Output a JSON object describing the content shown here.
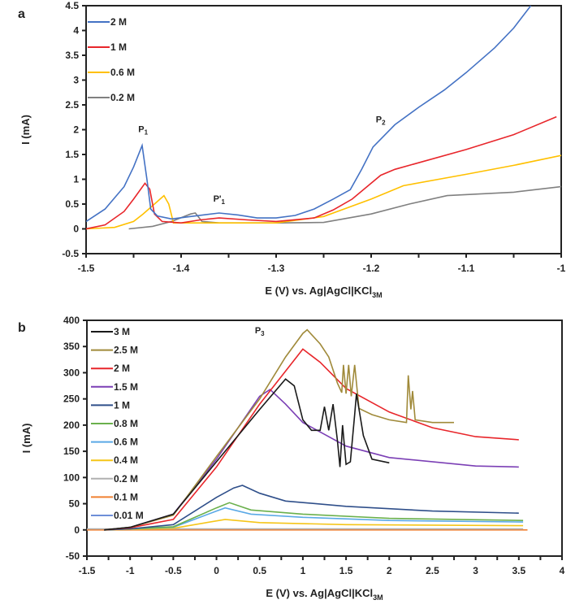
{
  "chart_data": [
    {
      "panel": "a",
      "type": "line",
      "xlabel": "E (V) vs. Ag|AgCl|KCl",
      "xlabel_sub": "3M",
      "ylabel": "I (mA)",
      "xlim": [
        -1.5,
        -1
      ],
      "ylim": [
        -0.5,
        4.5
      ],
      "xticks": [
        "-1.5",
        "-1.4",
        "-1.3",
        "-1.2",
        "-1.1",
        "-1"
      ],
      "xtick_values": [
        -1.5,
        -1.4,
        -1.3,
        -1.2,
        -1.1,
        -1
      ],
      "yticks": [
        "-0.5",
        "0",
        "0.5",
        "1",
        "1.5",
        "2",
        "2.5",
        "3",
        "3.5",
        "4",
        "4.5"
      ],
      "ytick_values": [
        -0.5,
        0,
        0.5,
        1,
        1.5,
        2,
        2.5,
        3,
        3.5,
        4,
        4.5
      ],
      "legend_placement": "top-left",
      "annotations": [
        {
          "text": "P",
          "sub": "1",
          "x": -1.44,
          "y": 1.95
        },
        {
          "text": "P'",
          "sub": "1",
          "x": -1.36,
          "y": 0.55
        },
        {
          "text": "P",
          "sub": "2",
          "x": -1.19,
          "y": 2.15
        }
      ],
      "series": [
        {
          "name": "2 M",
          "color": "#4472c4",
          "points": [
            [
              -1.5,
              0.15
            ],
            [
              -1.48,
              0.4
            ],
            [
              -1.46,
              0.85
            ],
            [
              -1.45,
              1.25
            ],
            [
              -1.441,
              1.68
            ],
            [
              -1.436,
              1.0
            ],
            [
              -1.432,
              0.4
            ],
            [
              -1.425,
              0.26
            ],
            [
              -1.41,
              0.2
            ],
            [
              -1.39,
              0.25
            ],
            [
              -1.36,
              0.32
            ],
            [
              -1.34,
              0.28
            ],
            [
              -1.32,
              0.22
            ],
            [
              -1.3,
              0.22
            ],
            [
              -1.28,
              0.27
            ],
            [
              -1.26,
              0.4
            ],
            [
              -1.24,
              0.6
            ],
            [
              -1.222,
              0.79
            ],
            [
              -1.21,
              1.2
            ],
            [
              -1.198,
              1.65
            ],
            [
              -1.175,
              2.1
            ],
            [
              -1.15,
              2.45
            ],
            [
              -1.123,
              2.8
            ],
            [
              -1.1,
              3.15
            ],
            [
              -1.07,
              3.65
            ],
            [
              -1.05,
              4.05
            ],
            [
              -1.032,
              4.5
            ]
          ]
        },
        {
          "name": "1 M",
          "color": "#e8262b",
          "points": [
            [
              -1.5,
              0
            ],
            [
              -1.48,
              0.08
            ],
            [
              -1.46,
              0.35
            ],
            [
              -1.45,
              0.6
            ],
            [
              -1.438,
              0.92
            ],
            [
              -1.433,
              0.8
            ],
            [
              -1.428,
              0.3
            ],
            [
              -1.42,
              0.15
            ],
            [
              -1.4,
              0.12
            ],
            [
              -1.38,
              0.18
            ],
            [
              -1.36,
              0.22
            ],
            [
              -1.33,
              0.18
            ],
            [
              -1.3,
              0.15
            ],
            [
              -1.26,
              0.22
            ],
            [
              -1.24,
              0.38
            ],
            [
              -1.22,
              0.6
            ],
            [
              -1.19,
              1.08
            ],
            [
              -1.175,
              1.2
            ],
            [
              -1.1,
              1.6
            ],
            [
              -1.05,
              1.9
            ],
            [
              -1.005,
              2.26
            ]
          ]
        },
        {
          "name": "0.6 M",
          "color": "#ffc000",
          "points": [
            [
              -1.5,
              0
            ],
            [
              -1.47,
              0.03
            ],
            [
              -1.45,
              0.15
            ],
            [
              -1.44,
              0.3
            ],
            [
              -1.425,
              0.55
            ],
            [
              -1.418,
              0.67
            ],
            [
              -1.413,
              0.5
            ],
            [
              -1.408,
              0.12
            ],
            [
              -1.38,
              0.12
            ],
            [
              -1.3,
              0.12
            ],
            [
              -1.25,
              0.25
            ],
            [
              -1.2,
              0.6
            ],
            [
              -1.166,
              0.87
            ],
            [
              -1.1,
              1.1
            ],
            [
              -1.05,
              1.28
            ],
            [
              -1.0,
              1.48
            ]
          ]
        },
        {
          "name": "0.2 M",
          "color": "#808080",
          "points": [
            [
              -1.455,
              0
            ],
            [
              -1.43,
              0.05
            ],
            [
              -1.41,
              0.15
            ],
            [
              -1.39,
              0.3
            ],
            [
              -1.385,
              0.32
            ],
            [
              -1.378,
              0.15
            ],
            [
              -1.36,
              0.12
            ],
            [
              -1.3,
              0.12
            ],
            [
              -1.25,
              0.13
            ],
            [
              -1.2,
              0.3
            ],
            [
              -1.16,
              0.5
            ],
            [
              -1.12,
              0.67
            ],
            [
              -1.05,
              0.74
            ],
            [
              -1.0,
              0.85
            ]
          ]
        }
      ]
    },
    {
      "panel": "b",
      "type": "line",
      "xlabel": "E (V) vs. Ag|AgCl|KCl",
      "xlabel_sub": "3M",
      "ylabel": "I (mA)",
      "xlim": [
        -1.5,
        4
      ],
      "ylim": [
        -50,
        400
      ],
      "xticks": [
        "-1.5",
        "-1",
        "-0.5",
        "0",
        "0.5",
        "1",
        "1.5",
        "2",
        "2.5",
        "3",
        "3.5",
        "4"
      ],
      "xtick_values": [
        -1.5,
        -1,
        -0.5,
        0,
        0.5,
        1,
        1.5,
        2,
        2.5,
        3,
        3.5,
        4
      ],
      "yticks": [
        "-50",
        "0",
        "50",
        "100",
        "150",
        "200",
        "250",
        "300",
        "350",
        "400"
      ],
      "ytick_values": [
        -50,
        0,
        50,
        100,
        150,
        200,
        250,
        300,
        350,
        400
      ],
      "legend_placement": "top-left",
      "annotations": [
        {
          "text": "P",
          "sub": "3",
          "x": 0.5,
          "y": 375
        }
      ],
      "series": [
        {
          "name": "3 M",
          "color": "#1a1a1a",
          "points": [
            [
              -1.3,
              0
            ],
            [
              -1,
              5
            ],
            [
              -0.5,
              30
            ],
            [
              0,
              130
            ],
            [
              0.5,
              230
            ],
            [
              0.8,
              288
            ],
            [
              0.9,
              275
            ],
            [
              1.0,
              210
            ],
            [
              1.1,
              190
            ],
            [
              1.2,
              190
            ],
            [
              1.25,
              235
            ],
            [
              1.3,
              190
            ],
            [
              1.35,
              240
            ],
            [
              1.4,
              170
            ],
            [
              1.43,
              120
            ],
            [
              1.46,
              200
            ],
            [
              1.5,
              125
            ],
            [
              1.55,
              130
            ],
            [
              1.6,
              220
            ],
            [
              1.62,
              260
            ],
            [
              1.7,
              180
            ],
            [
              1.8,
              135
            ],
            [
              2.0,
              128
            ]
          ]
        },
        {
          "name": "2.5 M",
          "color": "#a08a3a",
          "points": [
            [
              -1.3,
              0
            ],
            [
              -1,
              5
            ],
            [
              -0.5,
              28
            ],
            [
              0,
              140
            ],
            [
              0.5,
              250
            ],
            [
              0.8,
              330
            ],
            [
              1.0,
              375
            ],
            [
              1.05,
              382
            ],
            [
              1.2,
              355
            ],
            [
              1.3,
              330
            ],
            [
              1.4,
              280
            ],
            [
              1.45,
              262
            ],
            [
              1.47,
              315
            ],
            [
              1.5,
              260
            ],
            [
              1.53,
              315
            ],
            [
              1.56,
              255
            ],
            [
              1.6,
              315
            ],
            [
              1.65,
              232
            ],
            [
              1.8,
              220
            ],
            [
              2.0,
              210
            ],
            [
              2.2,
              205
            ],
            [
              2.22,
              295
            ],
            [
              2.25,
              230
            ],
            [
              2.27,
              265
            ],
            [
              2.3,
              210
            ],
            [
              2.5,
              205
            ],
            [
              2.75,
              205
            ]
          ]
        },
        {
          "name": "2 M",
          "color": "#e8262b",
          "points": [
            [
              -1.3,
              0
            ],
            [
              -1,
              4
            ],
            [
              -0.5,
              20
            ],
            [
              0,
              120
            ],
            [
              0.5,
              240
            ],
            [
              1.0,
              345
            ],
            [
              1.2,
              320
            ],
            [
              1.5,
              270
            ],
            [
              2.0,
              225
            ],
            [
              2.5,
              195
            ],
            [
              3.0,
              178
            ],
            [
              3.5,
              172
            ]
          ]
        },
        {
          "name": "1.5 M",
          "color": "#7b3fb5",
          "points": [
            [
              -1.3,
              0
            ],
            [
              -1,
              5
            ],
            [
              -0.5,
              30
            ],
            [
              0,
              135
            ],
            [
              0.5,
              255
            ],
            [
              0.62,
              268
            ],
            [
              0.8,
              240
            ],
            [
              1.0,
              205
            ],
            [
              1.5,
              160
            ],
            [
              2.0,
              138
            ],
            [
              3.0,
              122
            ],
            [
              3.5,
              120
            ]
          ]
        },
        {
          "name": "1 M",
          "color": "#2f4f8a",
          "points": [
            [
              -1.3,
              0
            ],
            [
              -1,
              2
            ],
            [
              -0.5,
              10
            ],
            [
              0,
              62
            ],
            [
              0.2,
              80
            ],
            [
              0.3,
              85
            ],
            [
              0.5,
              70
            ],
            [
              0.8,
              55
            ],
            [
              1.5,
              45
            ],
            [
              2.5,
              36
            ],
            [
              3.5,
              32
            ]
          ]
        },
        {
          "name": "0.8 M",
          "color": "#6ab04c",
          "points": [
            [
              -1.3,
              0
            ],
            [
              -0.5,
              6
            ],
            [
              0,
              42
            ],
            [
              0.15,
              52
            ],
            [
              0.4,
              38
            ],
            [
              1,
              30
            ],
            [
              2,
              22
            ],
            [
              3.55,
              18
            ]
          ]
        },
        {
          "name": "0.6 M",
          "color": "#5aa9e6",
          "points": [
            [
              -1.3,
              0
            ],
            [
              -0.5,
              5
            ],
            [
              0,
              36
            ],
            [
              0.1,
              42
            ],
            [
              0.4,
              30
            ],
            [
              1,
              24
            ],
            [
              2,
              18
            ],
            [
              3.55,
              15
            ]
          ]
        },
        {
          "name": "0.4 M",
          "color": "#f5c518",
          "points": [
            [
              -1.3,
              0
            ],
            [
              -0.5,
              3
            ],
            [
              0.1,
              20
            ],
            [
              0.5,
              14
            ],
            [
              1.5,
              10
            ],
            [
              3.55,
              8
            ]
          ]
        },
        {
          "name": "0.2 M",
          "color": "#b0b0b0",
          "points": [
            [
              -1.5,
              2
            ],
            [
              3.55,
              2
            ]
          ]
        },
        {
          "name": "0.1 M",
          "color": "#f08030",
          "points": [
            [
              -1.5,
              0
            ],
            [
              3.6,
              0
            ]
          ]
        },
        {
          "name": "0.01 M",
          "color": "#6e8fd8",
          "points": [
            [
              -1.5,
              1
            ],
            [
              3.55,
              1
            ]
          ]
        }
      ]
    }
  ],
  "panel_labels": [
    "a",
    "b"
  ]
}
